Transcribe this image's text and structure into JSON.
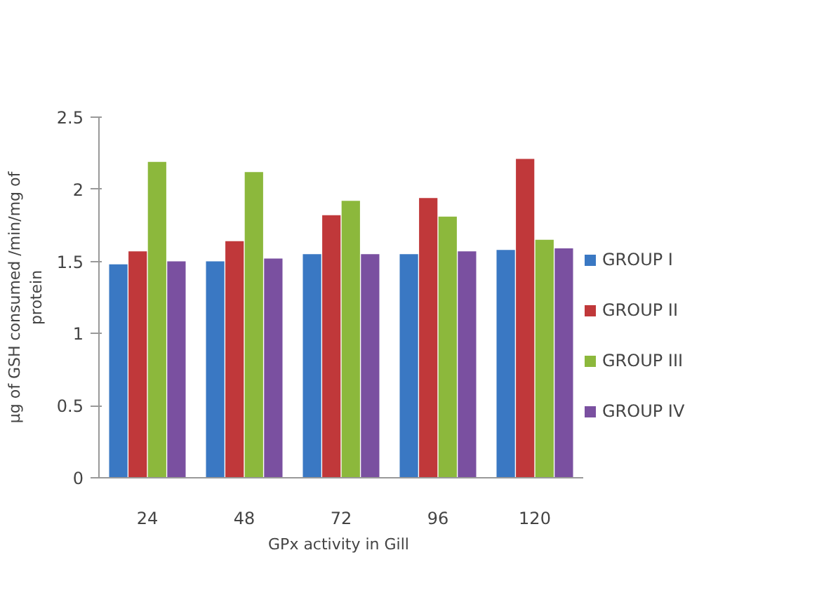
{
  "chart_data": {
    "type": "bar",
    "xlabel": "GPx activity  in Gill",
    "ylabel": "µg of GSH consumed /min/mg of protein",
    "categories": [
      "24",
      "48",
      "72",
      "96",
      "120"
    ],
    "series": [
      {
        "name": "GROUP I",
        "color": "#3a78c3",
        "values": [
          1.48,
          1.5,
          1.55,
          1.55,
          1.58
        ]
      },
      {
        "name": "GROUP II",
        "color": "#c0383a",
        "values": [
          1.57,
          1.64,
          1.82,
          1.94,
          2.21
        ]
      },
      {
        "name": "GROUP III",
        "color": "#8cb83c",
        "values": [
          2.19,
          2.12,
          1.92,
          1.81,
          1.65
        ]
      },
      {
        "name": "GROUP IV",
        "color": "#7a50a0",
        "values": [
          1.5,
          1.52,
          1.55,
          1.57,
          1.59
        ]
      }
    ],
    "ylim": [
      0,
      2.5
    ],
    "yticks": [
      0,
      0.5,
      1,
      1.5,
      2,
      2.5
    ],
    "grid": false,
    "legend": "right"
  }
}
